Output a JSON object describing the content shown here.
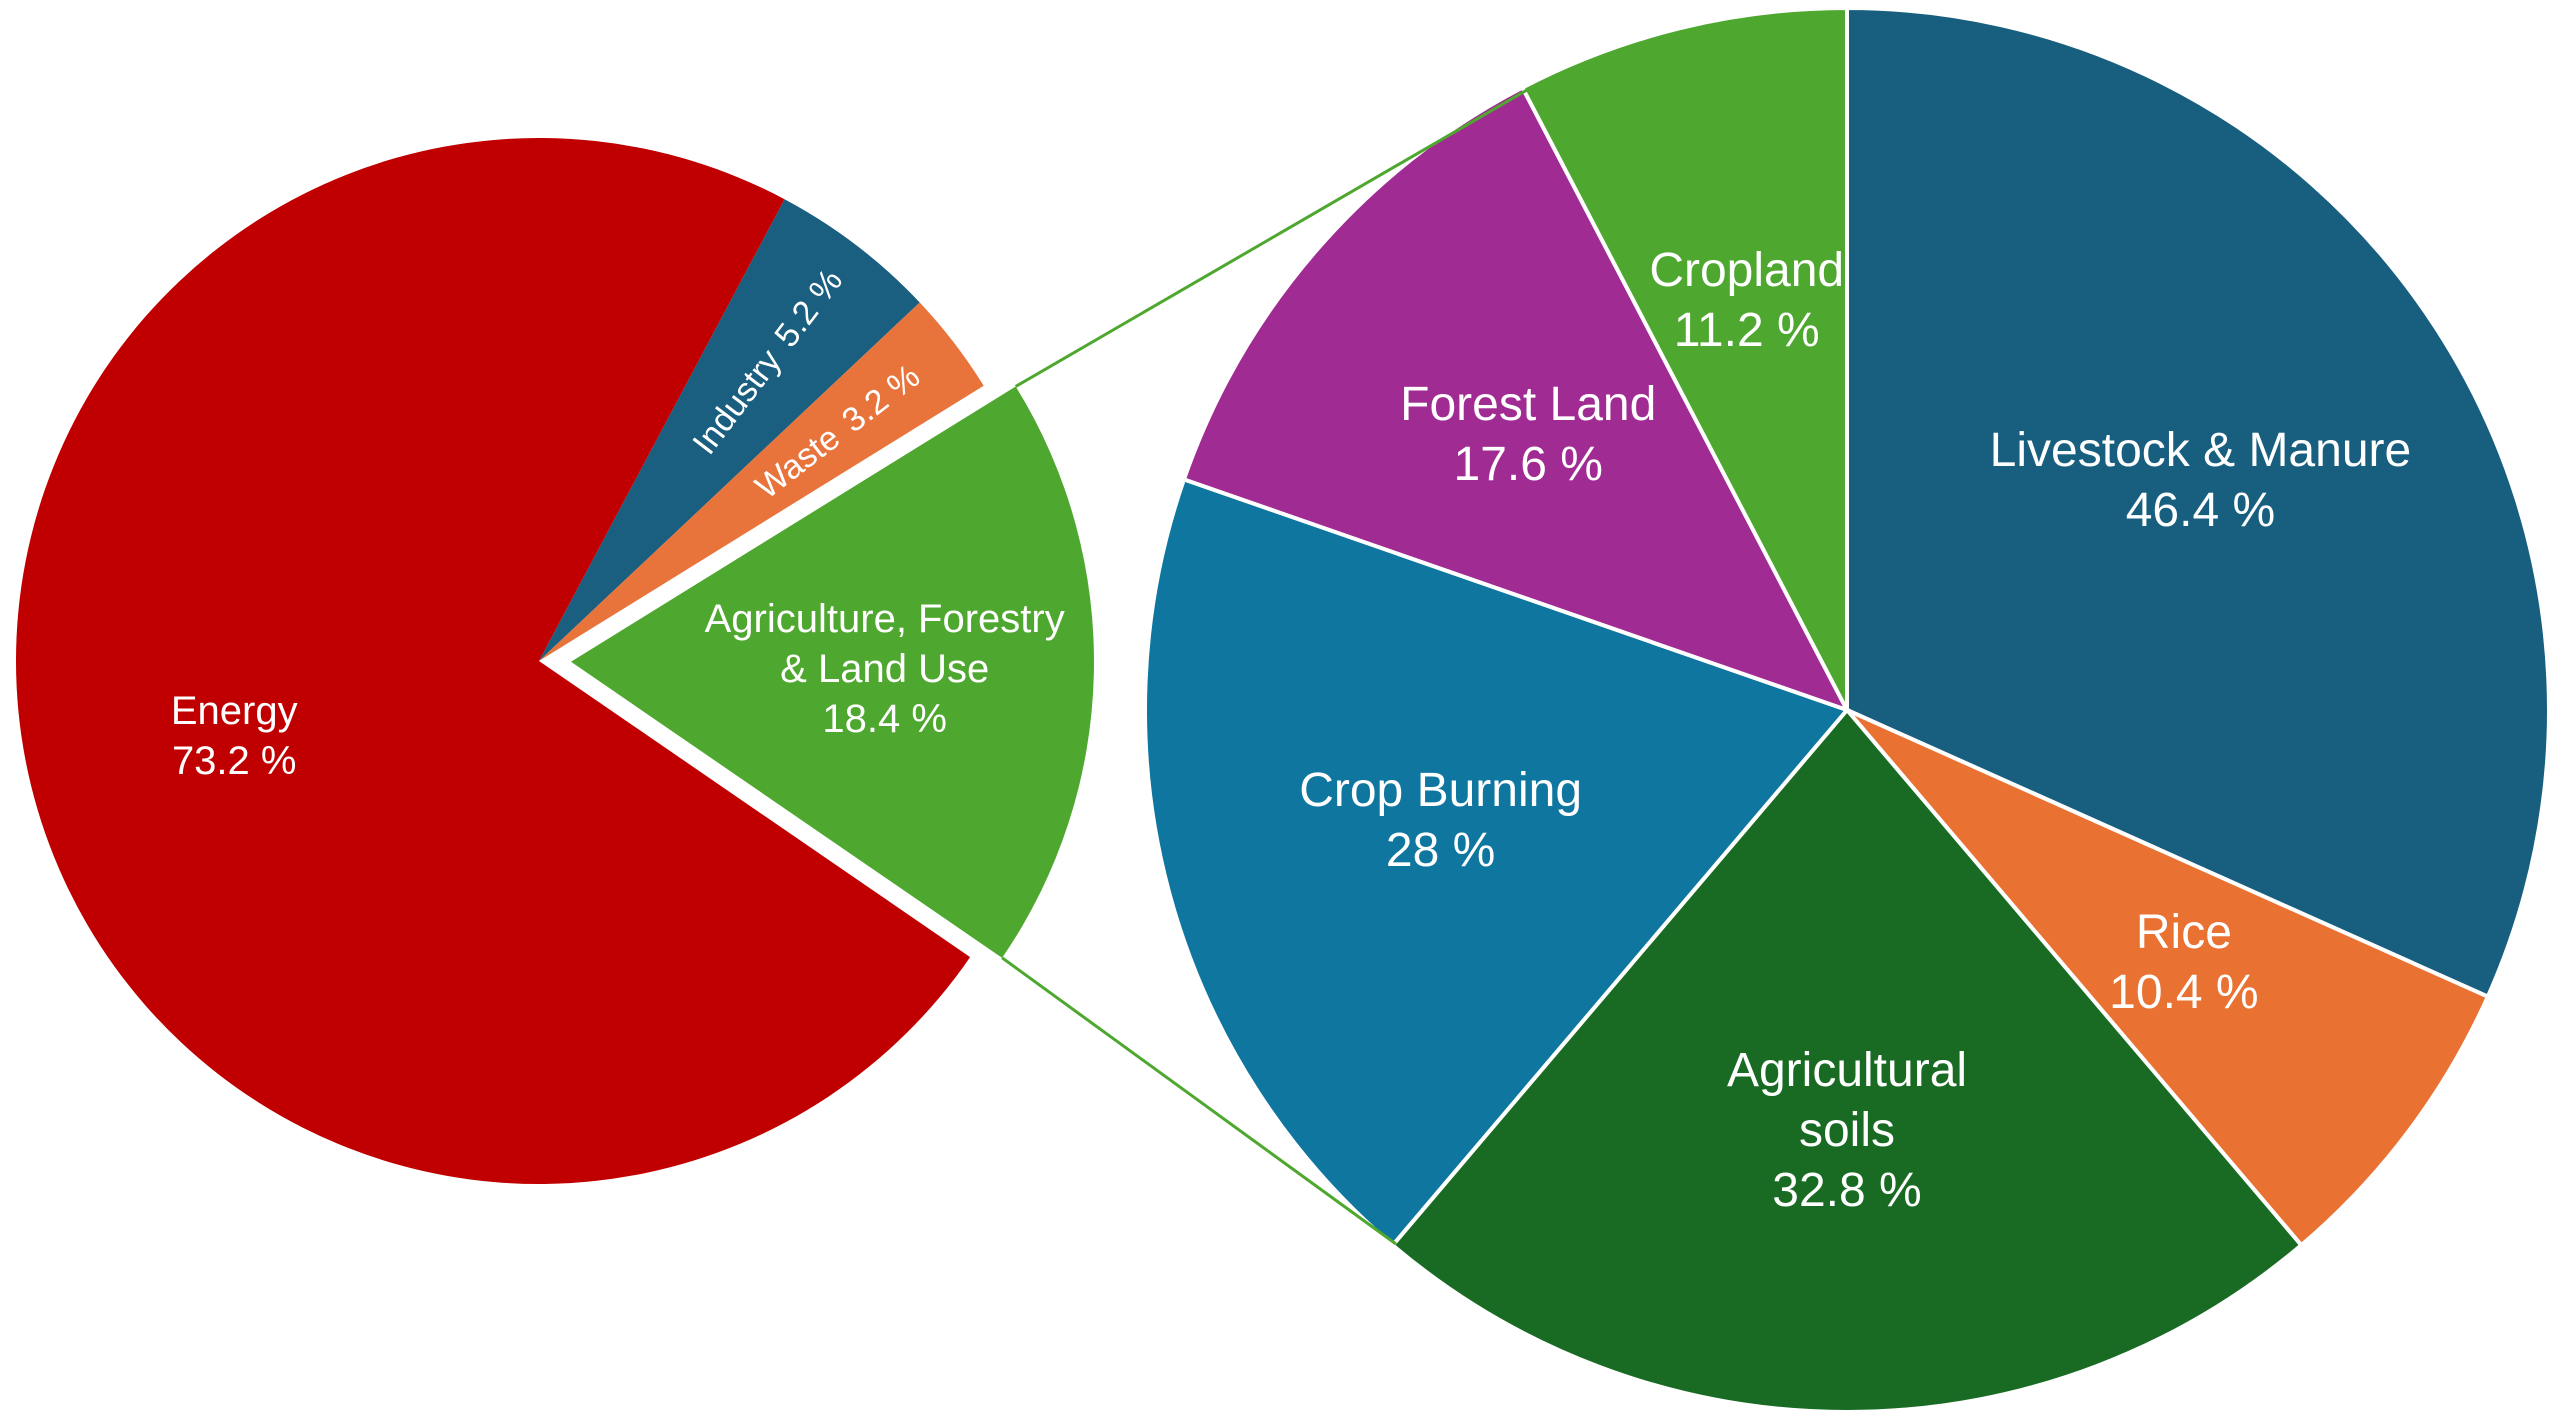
{
  "chart_data": [
    {
      "type": "pie",
      "categories": [
        "Industry",
        "Waste",
        "Agriculture, Forestry & Land Use",
        "Energy"
      ],
      "values": [
        5.2,
        3.2,
        18.4,
        73.2
      ],
      "value_labels": [
        "5.2 %",
        "3.2 %",
        "18.4 %",
        "73.2 %"
      ],
      "colors": [
        "#1a5e80",
        "#e8743b",
        "#4ea72e",
        "#c00000"
      ]
    },
    {
      "type": "pie",
      "categories": [
        "Livestock & Manure",
        "Rice",
        "Agricultural soils",
        "Crop Burning",
        "Forest Land",
        "Cropland"
      ],
      "values": [
        46.4,
        10.4,
        32.8,
        28,
        17.6,
        11.2
      ],
      "value_labels": [
        "46.4 %",
        "10.4 %",
        "32.8 %",
        "28 %",
        "17.6 %",
        "11.2 %"
      ],
      "colors": [
        "#185f7f",
        "#e97132",
        "#196b24",
        "#0f76a0",
        "#a02b93",
        "#4ea72e"
      ]
    }
  ]
}
